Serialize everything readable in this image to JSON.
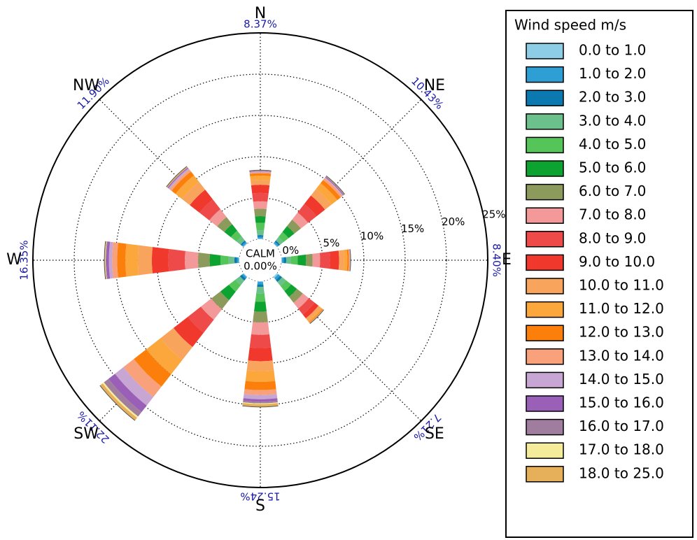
{
  "chart_data": {
    "type": "windrose",
    "categories": [
      "N",
      "NE",
      "E",
      "SE",
      "S",
      "SW",
      "W",
      "NW"
    ],
    "totals": [
      {
        "value": 8.37,
        "label": "8.37%"
      },
      {
        "value": 10.43,
        "label": "10.43%"
      },
      {
        "value": 8.4,
        "label": "8.40%"
      },
      {
        "value": 7.21,
        "label": "7.21%"
      },
      {
        "value": 15.24,
        "label": "15.24%"
      },
      {
        "value": 22.11,
        "label": "22.11%"
      },
      {
        "value": 16.35,
        "label": "16.35%"
      },
      {
        "value": 11.9,
        "label": "11.90%"
      }
    ],
    "calm_label": "CALM",
    "calm": {
      "value": 0,
      "label": "0.00%"
    },
    "rlim": [
      0,
      25
    ],
    "rticks": [
      {
        "value": 0,
        "label": "0%"
      },
      {
        "value": 5,
        "label": "5%"
      },
      {
        "value": 10,
        "label": "10%"
      },
      {
        "value": 15,
        "label": "15%"
      },
      {
        "value": 20,
        "label": "20%"
      },
      {
        "value": 25,
        "label": "25%"
      }
    ],
    "grid": true,
    "legend_title": "Wind speed m/s",
    "legend": "right",
    "series": [
      {
        "name": "0.0 to 1.0",
        "color": "#8ecde6",
        "values": [
          0.1,
          0.1,
          0.1,
          0.2,
          0.1,
          0.1,
          0.1,
          0.1
        ]
      },
      {
        "name": "1.0 to 2.0",
        "color": "#2e9fd4",
        "values": [
          0.2,
          0.2,
          0.2,
          0.3,
          0.3,
          0.2,
          0.2,
          0.2
        ]
      },
      {
        "name": "2.0 to 3.0",
        "color": "#0b78b0",
        "values": [
          0.2,
          0.2,
          0.3,
          0.3,
          0.3,
          0.3,
          0.3,
          0.2
        ]
      },
      {
        "name": "3.0 to 4.0",
        "color": "#6cc08b",
        "values": [
          0.6,
          0.5,
          0.6,
          0.6,
          0.8,
          0.7,
          0.7,
          0.6
        ]
      },
      {
        "name": "4.0 to 5.0",
        "color": "#55c55a",
        "values": [
          0.9,
          0.8,
          0.8,
          0.8,
          1.0,
          1.0,
          1.0,
          0.9
        ]
      },
      {
        "name": "5.0 to 6.0",
        "color": "#0ca330",
        "values": [
          0.8,
          0.9,
          1.0,
          0.9,
          1.2,
          1.3,
          1.3,
          1.0
        ]
      },
      {
        "name": "6.0 to 7.0",
        "color": "#8c9a5c",
        "values": [
          0.9,
          1.0,
          0.8,
          0.9,
          1.3,
          1.4,
          1.4,
          1.1
        ]
      },
      {
        "name": "7.0 to 8.0",
        "color": "#f4999a",
        "values": [
          0.9,
          1.1,
          0.9,
          0.9,
          1.5,
          1.6,
          1.6,
          1.2
        ]
      },
      {
        "name": "8.0 to 9.0",
        "color": "#ee4a4a",
        "values": [
          1.0,
          1.3,
          1.2,
          0.9,
          1.6,
          2.0,
          2.0,
          1.5
        ]
      },
      {
        "name": "9.0 to 10.0",
        "color": "#f0382d",
        "values": [
          1.0,
          1.3,
          1.1,
          0.6,
          1.6,
          2.2,
          2.0,
          1.5
        ]
      },
      {
        "name": "10.0 to 11.0",
        "color": "#f9a45c",
        "values": [
          0.6,
          1.0,
          0.6,
          0.4,
          1.2,
          2.0,
          1.7,
          1.2
        ]
      },
      {
        "name": "11.0 to 12.0",
        "color": "#fba73c",
        "values": [
          0.5,
          0.9,
          0.4,
          0.2,
          1.3,
          2.2,
          1.5,
          1.0
        ]
      },
      {
        "name": "12.0 to 13.0",
        "color": "#fb7f0a",
        "values": [
          0.3,
          0.5,
          0.2,
          0.1,
          1.0,
          1.9,
          1.0,
          0.6
        ]
      },
      {
        "name": "13.0 to 14.0",
        "color": "#f8a17a",
        "values": [
          0.1,
          0.3,
          0.1,
          0.05,
          0.6,
          1.6,
          0.6,
          0.3
        ]
      },
      {
        "name": "14.0 to 15.0",
        "color": "#c7a6d4",
        "values": [
          0.1,
          0.1,
          0.05,
          0,
          0.5,
          1.3,
          0.4,
          0.2
        ]
      },
      {
        "name": "15.0 to 16.0",
        "color": "#9a5fb6",
        "values": [
          0.05,
          0.1,
          0,
          0,
          0.3,
          1.0,
          0.3,
          0.1
        ]
      },
      {
        "name": "16.0 to 17.0",
        "color": "#a07d9e",
        "values": [
          0.05,
          0.05,
          0,
          0,
          0.2,
          0.7,
          0.1,
          0.05
        ]
      },
      {
        "name": "17.0 to 18.0",
        "color": "#f4ec9a",
        "values": [
          0,
          0,
          0,
          0,
          0.1,
          0.2,
          0.05,
          0
        ]
      },
      {
        "name": "18.0 to 25.0",
        "color": "#e6b05a",
        "values": [
          0.07,
          0.08,
          0.05,
          0.06,
          0.34,
          0.41,
          0.1,
          0.15
        ]
      }
    ]
  }
}
